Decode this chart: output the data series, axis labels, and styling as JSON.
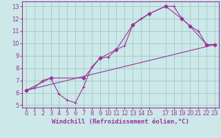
{
  "bg_color": "#cce8e8",
  "grid_color": "#aacccc",
  "line_color": "#993399",
  "xlabel": "Windchill (Refroidissement éolien,°C)",
  "xlim": [
    -0.5,
    23.5
  ],
  "ylim": [
    4.8,
    13.4
  ],
  "yticks": [
    5,
    6,
    7,
    8,
    9,
    10,
    11,
    12,
    13
  ],
  "xticks": [
    0,
    1,
    2,
    3,
    4,
    5,
    6,
    7,
    8,
    9,
    10,
    11,
    12,
    13,
    14,
    15,
    17,
    18,
    19,
    20,
    21,
    22,
    23
  ],
  "line1_x": [
    0,
    1,
    2,
    3,
    4,
    5,
    6,
    7,
    8,
    9,
    10,
    11,
    12,
    13,
    14,
    15,
    17,
    18,
    19,
    20,
    21,
    22,
    23
  ],
  "line1_y": [
    6.2,
    6.4,
    7.0,
    7.2,
    5.9,
    5.4,
    5.2,
    6.5,
    8.1,
    8.8,
    8.9,
    9.5,
    9.8,
    11.5,
    12.0,
    12.4,
    13.0,
    13.0,
    12.0,
    11.4,
    11.0,
    9.9,
    9.9
  ],
  "line2_x": [
    0,
    3,
    7,
    9,
    11,
    13,
    15,
    17,
    19,
    20,
    22,
    23
  ],
  "line2_y": [
    6.2,
    7.2,
    7.2,
    8.8,
    9.5,
    11.5,
    12.4,
    13.0,
    12.0,
    11.4,
    9.9,
    9.9
  ],
  "line3_x": [
    0,
    23
  ],
  "line3_y": [
    6.2,
    9.9
  ],
  "xlabel_fontsize": 6.5,
  "tick_fontsize": 6
}
